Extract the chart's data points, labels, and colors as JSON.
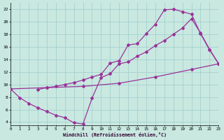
{
  "xlabel": "Windchill (Refroidissement éolien,°C)",
  "bg_color": "#c8e8e0",
  "grid_color": "#a0cccc",
  "line_color": "#993399",
  "marker": "D",
  "markersize": 2.0,
  "linewidth": 0.9,
  "xlim": [
    0,
    23
  ],
  "ylim": [
    3.5,
    23
  ],
  "xticks": [
    0,
    1,
    2,
    3,
    4,
    5,
    6,
    7,
    8,
    9,
    10,
    11,
    12,
    13,
    14,
    15,
    16,
    17,
    18,
    19,
    20,
    21,
    22,
    23
  ],
  "yticks": [
    4,
    6,
    8,
    10,
    12,
    14,
    16,
    18,
    20,
    22
  ],
  "curve_upper_x": [
    3,
    4,
    5,
    6,
    7,
    8,
    9,
    10,
    11,
    12,
    13,
    14,
    15,
    16,
    17,
    18,
    19,
    20,
    21,
    22,
    23
  ],
  "curve_upper_y": [
    9.2,
    9.5,
    9.7,
    10.0,
    10.3,
    10.7,
    11.2,
    11.6,
    13.4,
    13.8,
    16.3,
    16.5,
    18.1,
    19.6,
    21.9,
    22.0,
    21.6,
    21.2,
    18.1,
    15.5,
    13.3
  ],
  "curve_lower_x": [
    0,
    1,
    2,
    3,
    4,
    5,
    6,
    7,
    8,
    9,
    10,
    11,
    12,
    13,
    14,
    15,
    16,
    17,
    18,
    19,
    20,
    21,
    22,
    23
  ],
  "curve_lower_y": [
    9.3,
    7.9,
    7.0,
    6.3,
    5.7,
    5.1,
    4.7,
    3.9,
    3.7,
    7.8,
    11.1,
    11.7,
    13.3,
    13.6,
    14.5,
    15.2,
    16.2,
    17.0,
    18.0,
    19.0,
    20.5,
    18.2,
    15.6,
    13.3
  ],
  "curve_diag_x": [
    0,
    4,
    8,
    12,
    16,
    20,
    23
  ],
  "curve_diag_y": [
    9.3,
    9.5,
    9.7,
    10.2,
    11.2,
    12.4,
    13.3
  ]
}
